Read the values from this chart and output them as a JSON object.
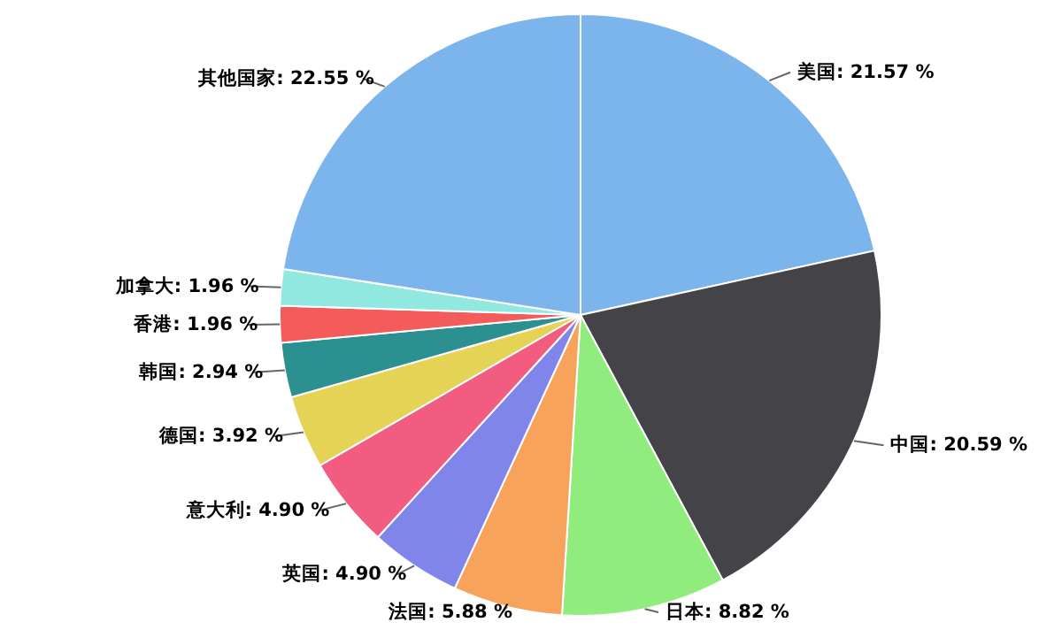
{
  "chart_data": {
    "type": "pie",
    "categories": [
      "美国",
      "中国",
      "日本",
      "法国",
      "英国",
      "意大利",
      "德国",
      "韩国",
      "香港",
      "加拿大",
      "其他国家"
    ],
    "values": [
      21.57,
      20.59,
      8.82,
      5.88,
      4.9,
      4.9,
      3.92,
      2.94,
      1.96,
      1.96,
      22.55
    ],
    "value_labels": [
      ": 21.57 %",
      ": 20.59 %",
      ": 8.82 %",
      ": 5.88 %",
      ": 4.90 %",
      ": 4.90 %",
      ": 3.92 %",
      ": 2.94 %",
      ": 1.96 %",
      ": 1.96 %",
      ": 22.55 %"
    ],
    "colors": [
      "#7cb5ec",
      "#434348",
      "#90ed7d",
      "#f7a35c",
      "#8085e9",
      "#f15c80",
      "#e4d354",
      "#2b908f",
      "#f45b5b",
      "#91e8e1",
      "#7cb5ec"
    ]
  }
}
